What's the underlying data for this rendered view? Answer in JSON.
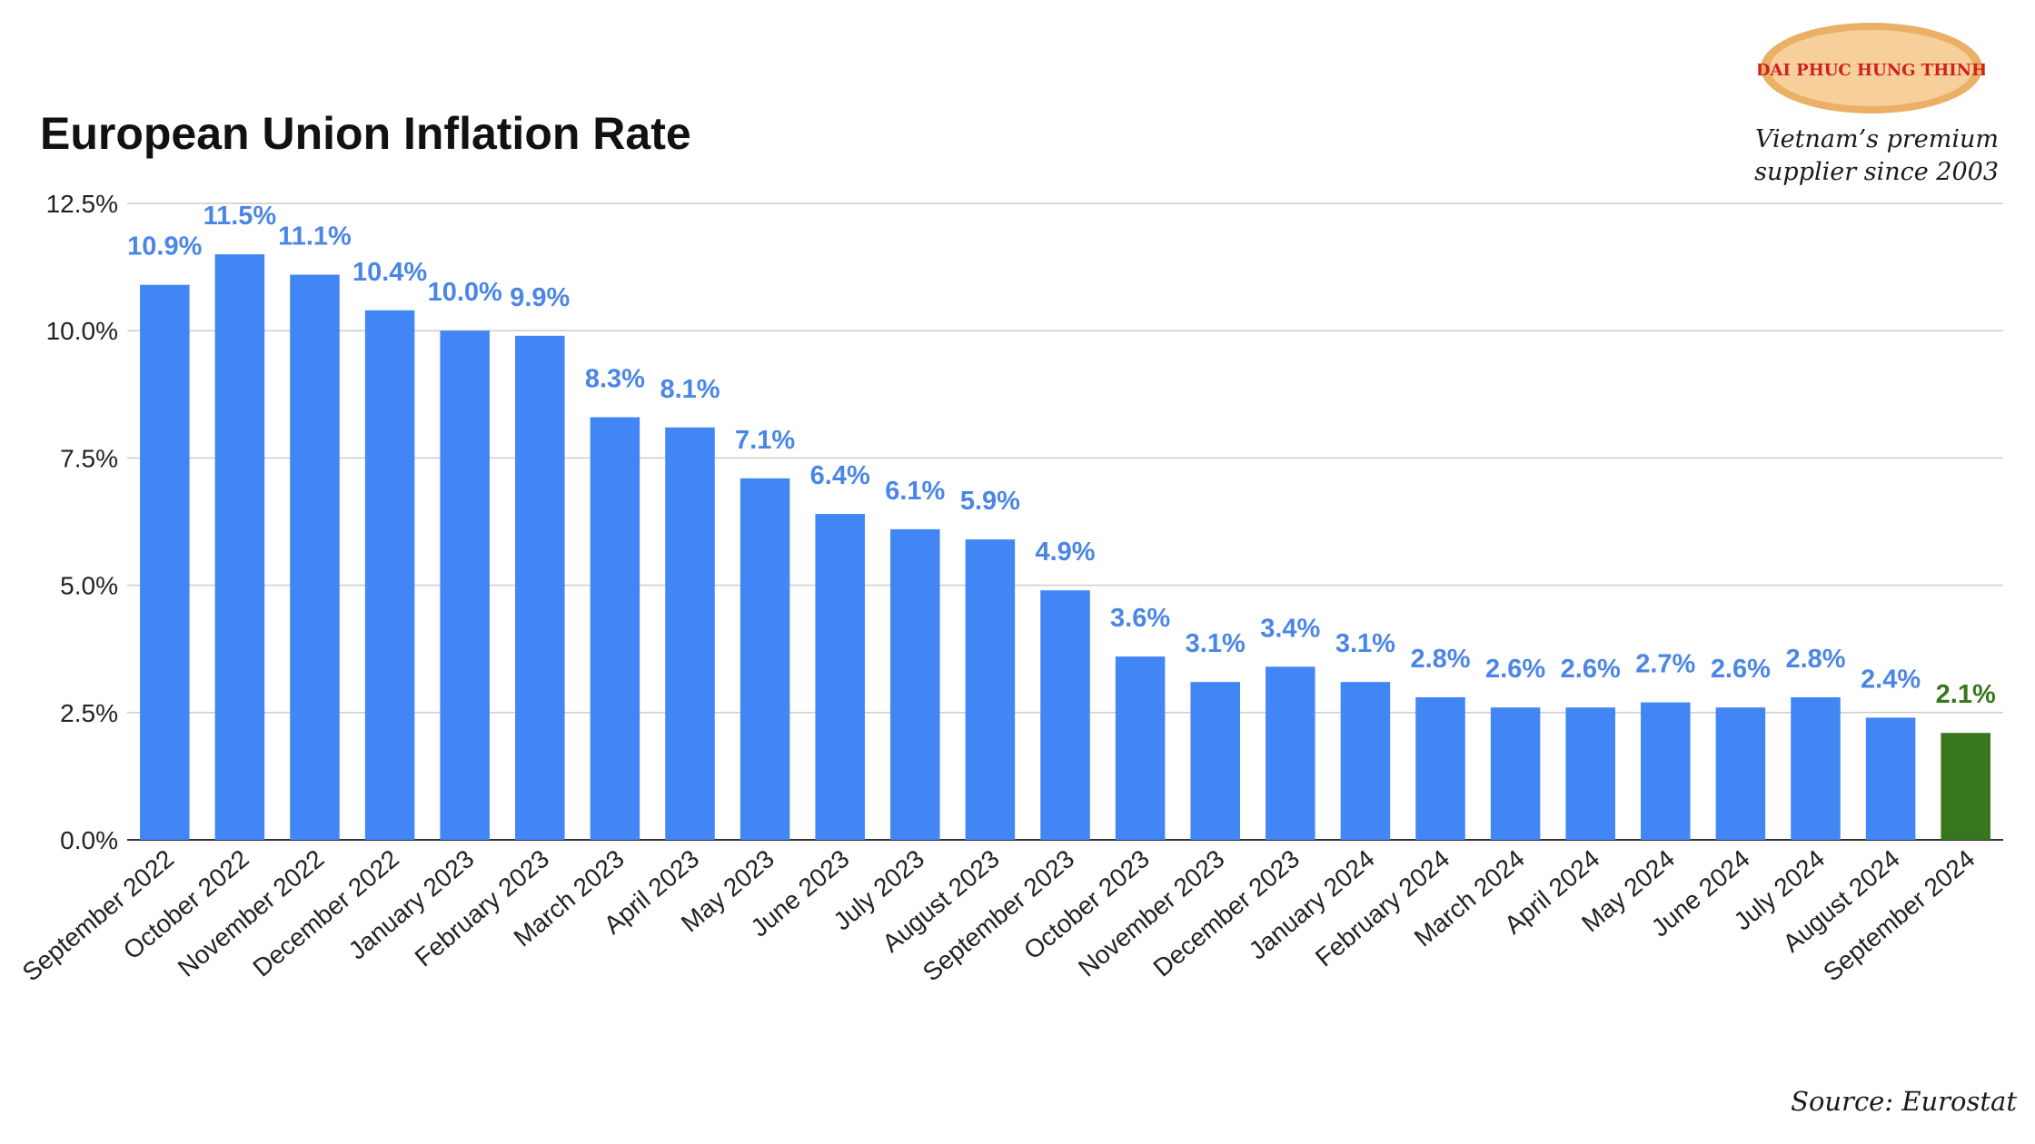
{
  "chart_data": {
    "type": "bar",
    "title": "European Union Inflation Rate",
    "xlabel": "",
    "ylabel": "",
    "ylim": [
      0,
      12.5
    ],
    "yticks": [
      "0.0%",
      "2.5%",
      "5.0%",
      "7.5%",
      "10.0%",
      "12.5%"
    ],
    "ytick_values": [
      0,
      2.5,
      5,
      7.5,
      10,
      12.5
    ],
    "grid": true,
    "categories": [
      "September 2022",
      "October 2022",
      "November 2022",
      "December 2022",
      "January 2023",
      "February 2023",
      "March 2023",
      "April 2023",
      "May 2023",
      "June 2023",
      "July 2023",
      "August 2023",
      "September 2023",
      "October 2023",
      "November 2023",
      "December 2023",
      "January 2024",
      "February 2024",
      "March 2024",
      "April 2024",
      "May 2024",
      "June 2024",
      "July 2024",
      "August 2024",
      "September 2024"
    ],
    "values": [
      10.9,
      11.5,
      11.1,
      10.4,
      10.0,
      9.9,
      8.3,
      8.1,
      7.1,
      6.4,
      6.1,
      5.9,
      4.9,
      3.6,
      3.1,
      3.4,
      3.1,
      2.8,
      2.6,
      2.6,
      2.7,
      2.6,
      2.8,
      2.4,
      2.1
    ],
    "data_labels": [
      "10.9%",
      "11.5%",
      "11.1%",
      "10.4%",
      "10.0%",
      "9.9%",
      "8.3%",
      "8.1%",
      "7.1%",
      "6.4%",
      "6.1%",
      "5.9%",
      "4.9%",
      "3.6%",
      "3.1%",
      "3.4%",
      "3.1%",
      "2.8%",
      "2.6%",
      "2.6%",
      "2.7%",
      "2.6%",
      "2.8%",
      "2.4%",
      "2.1%"
    ],
    "highlight_index": 24,
    "colors": {
      "bar": "#4285f4",
      "highlight_bar": "#38761d",
      "label": "#4a86e8",
      "highlight_label": "#38761d",
      "grid": "#cccccc",
      "axis": "#333333"
    }
  },
  "branding": {
    "logo_text": "DAI PHUC HUNG THINH",
    "tagline_line1": "Vietnam’s premium",
    "tagline_line2": "supplier since 2003",
    "source": "Source: Eurostat",
    "logo_colors": {
      "fill": "#f6cf9a",
      "ring": "#e9b066",
      "text": "#d0211c"
    }
  }
}
